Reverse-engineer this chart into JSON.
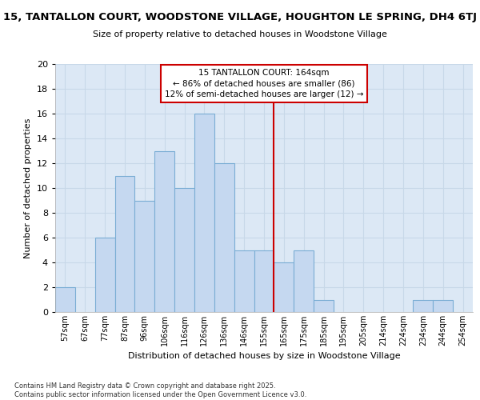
{
  "title": "15, TANTALLON COURT, WOODSTONE VILLAGE, HOUGHTON LE SPRING, DH4 6TJ",
  "subtitle": "Size of property relative to detached houses in Woodstone Village",
  "xlabel": "Distribution of detached houses by size in Woodstone Village",
  "ylabel": "Number of detached properties",
  "categories": [
    "57sqm",
    "67sqm",
    "77sqm",
    "87sqm",
    "96sqm",
    "106sqm",
    "116sqm",
    "126sqm",
    "136sqm",
    "146sqm",
    "155sqm",
    "165sqm",
    "175sqm",
    "185sqm",
    "195sqm",
    "205sqm",
    "214sqm",
    "224sqm",
    "234sqm",
    "244sqm",
    "254sqm"
  ],
  "values": [
    2,
    0,
    6,
    11,
    9,
    13,
    10,
    16,
    12,
    5,
    5,
    4,
    5,
    1,
    0,
    0,
    0,
    0,
    1,
    1,
    0
  ],
  "bar_color_normal": "#c5d8f0",
  "bar_edge_color": "#7aadd4",
  "property_line_color": "#cc0000",
  "property_line_x": 11,
  "annotation_text": "15 TANTALLON COURT: 164sqm\n← 86% of detached houses are smaller (86)\n12% of semi-detached houses are larger (12) →",
  "annotation_box_color": "#ffffff",
  "annotation_border_color": "#cc0000",
  "ylim": [
    0,
    20
  ],
  "yticks": [
    0,
    2,
    4,
    6,
    8,
    10,
    12,
    14,
    16,
    18,
    20
  ],
  "grid_color": "#c8d8e8",
  "background_color": "#dce8f5",
  "footer_line1": "Contains HM Land Registry data © Crown copyright and database right 2025.",
  "footer_line2": "Contains public sector information licensed under the Open Government Licence v3.0."
}
